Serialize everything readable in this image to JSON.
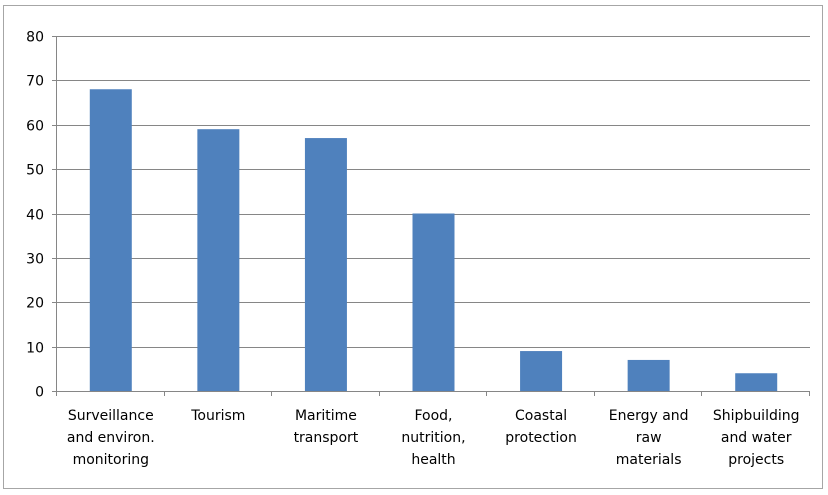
{
  "chart_data": {
    "type": "bar",
    "categories": [
      [
        "Surveillance",
        "and environ.",
        "monitoring"
      ],
      [
        "Tourism"
      ],
      [
        "Maritime",
        "transport"
      ],
      [
        "Food,",
        "nutrition,",
        "health"
      ],
      [
        "Coastal",
        "protection"
      ],
      [
        "Energy and",
        "raw",
        "materials"
      ],
      [
        "Shipbuilding",
        "and water",
        "projects"
      ]
    ],
    "values": [
      68,
      59,
      57,
      40,
      9,
      7,
      4
    ],
    "yticks": [
      0,
      10,
      20,
      30,
      40,
      50,
      60,
      70,
      80
    ],
    "ylim": [
      0,
      80
    ],
    "title": "",
    "xlabel": "",
    "ylabel": "",
    "grid": true,
    "legend": "none",
    "colors": {
      "bar": "#4f81bd",
      "grid": "#868686",
      "axis": "#868686",
      "border": "#a6a6a6"
    }
  }
}
